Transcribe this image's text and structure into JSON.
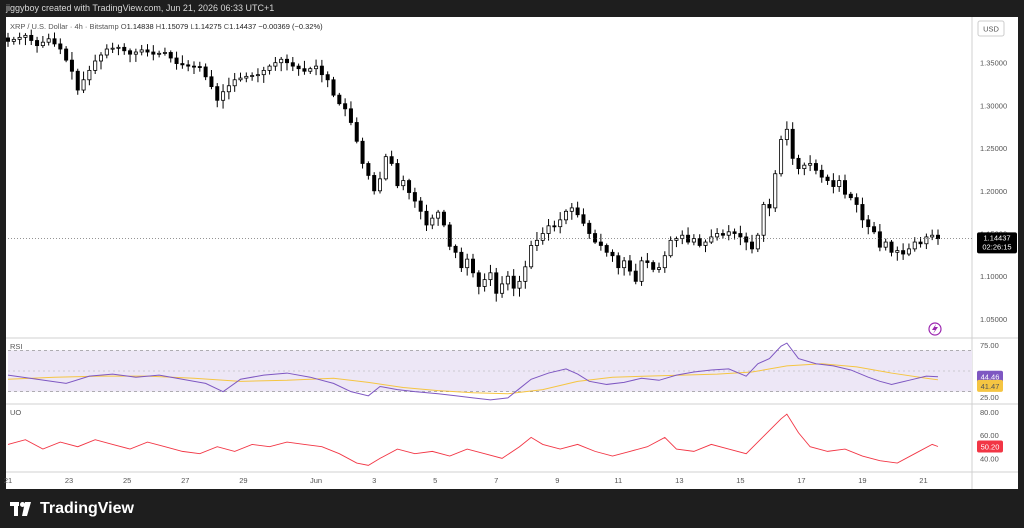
{
  "header": {
    "credit": "jiggyboy created with TradingView.com, Jun 21, 2026 06:33 UTC+1"
  },
  "brand": {
    "name": "TradingView"
  },
  "colors": {
    "up": "#ffffff",
    "down": "#000000",
    "wick": "#000000",
    "rsi_line": "#7e57c2",
    "rsi_ma": "#f5c542",
    "rsi_band": "#ede7f6",
    "uo_line": "#f23645",
    "price_pill": "#000000"
  },
  "chart_data": [
    {
      "type": "candlestick",
      "symbol_legend": "XRP / U.S. Dollar · 4h · Bitstamp",
      "ohlc_legend": {
        "o_label": "O",
        "o": "1.14838",
        "h_label": "H",
        "h": "1.15079",
        "l_label": "L",
        "l": "1.14275",
        "c_label": "C",
        "c": "1.14437",
        "change": "−0.00369 (−0.32%)"
      },
      "currency": "USD",
      "last_price": "1.14437",
      "countdown": "02:26:15",
      "y_ticks": [
        "1.35000",
        "1.30000",
        "1.25000",
        "1.20000",
        "1.15000",
        "1.10000",
        "1.05000"
      ],
      "y_tick_values": [
        1.35,
        1.3,
        1.25,
        1.2,
        1.15,
        1.1,
        1.05
      ],
      "ylim": [
        1.03,
        1.4
      ],
      "x_ticks": [
        "21",
        "23",
        "25",
        "27",
        "29",
        "Jun",
        "3",
        "5",
        "7",
        "9",
        "11",
        "13",
        "15",
        "17",
        "19",
        "21"
      ],
      "close_path": [
        [
          0,
          1.375
        ],
        [
          3,
          1.382
        ],
        [
          5,
          1.37
        ],
        [
          7,
          1.378
        ],
        [
          9,
          1.366
        ],
        [
          11,
          1.34
        ],
        [
          12,
          1.318
        ],
        [
          13,
          1.33
        ],
        [
          15,
          1.352
        ],
        [
          17,
          1.366
        ],
        [
          19,
          1.368
        ],
        [
          21,
          1.36
        ],
        [
          23,
          1.365
        ],
        [
          25,
          1.36
        ],
        [
          27,
          1.362
        ],
        [
          29,
          1.349
        ],
        [
          31,
          1.346
        ],
        [
          33,
          1.345
        ],
        [
          35,
          1.322
        ],
        [
          36,
          1.306
        ],
        [
          37,
          1.316
        ],
        [
          39,
          1.33
        ],
        [
          41,
          1.334
        ],
        [
          43,
          1.336
        ],
        [
          45,
          1.346
        ],
        [
          47,
          1.354
        ],
        [
          49,
          1.346
        ],
        [
          51,
          1.34
        ],
        [
          53,
          1.346
        ],
        [
          54,
          1.336
        ],
        [
          55,
          1.33
        ],
        [
          56,
          1.312
        ],
        [
          57,
          1.302
        ],
        [
          58,
          1.296
        ],
        [
          59,
          1.28
        ],
        [
          60,
          1.258
        ],
        [
          61,
          1.232
        ],
        [
          62,
          1.218
        ],
        [
          63,
          1.2
        ],
        [
          64,
          1.214
        ],
        [
          65,
          1.24
        ],
        [
          66,
          1.232
        ],
        [
          67,
          1.206
        ],
        [
          68,
          1.212
        ],
        [
          69,
          1.198
        ],
        [
          70,
          1.188
        ],
        [
          71,
          1.176
        ],
        [
          72,
          1.16
        ],
        [
          73,
          1.168
        ],
        [
          74,
          1.175
        ],
        [
          75,
          1.16
        ],
        [
          76,
          1.135
        ],
        [
          77,
          1.128
        ],
        [
          78,
          1.11
        ],
        [
          79,
          1.12
        ],
        [
          80,
          1.104
        ],
        [
          81,
          1.088
        ],
        [
          82,
          1.096
        ],
        [
          83,
          1.104
        ],
        [
          84,
          1.08
        ],
        [
          85,
          1.091
        ],
        [
          86,
          1.1
        ],
        [
          87,
          1.086
        ],
        [
          88,
          1.094
        ],
        [
          89,
          1.111
        ],
        [
          90,
          1.136
        ],
        [
          91,
          1.142
        ],
        [
          92,
          1.15
        ],
        [
          93,
          1.159
        ],
        [
          94,
          1.158
        ],
        [
          95,
          1.166
        ],
        [
          96,
          1.176
        ],
        [
          97,
          1.18
        ],
        [
          98,
          1.172
        ],
        [
          99,
          1.162
        ],
        [
          100,
          1.15
        ],
        [
          101,
          1.14
        ],
        [
          102,
          1.136
        ],
        [
          103,
          1.128
        ],
        [
          104,
          1.124
        ],
        [
          105,
          1.11
        ],
        [
          106,
          1.118
        ],
        [
          107,
          1.106
        ],
        [
          108,
          1.094
        ],
        [
          109,
          1.118
        ],
        [
          110,
          1.116
        ],
        [
          111,
          1.108
        ],
        [
          112,
          1.11
        ],
        [
          113,
          1.124
        ],
        [
          114,
          1.142
        ],
        [
          115,
          1.144
        ],
        [
          116,
          1.148
        ],
        [
          117,
          1.14
        ],
        [
          118,
          1.144
        ],
        [
          119,
          1.136
        ],
        [
          120,
          1.14
        ],
        [
          121,
          1.146
        ],
        [
          122,
          1.15
        ],
        [
          123,
          1.148
        ],
        [
          124,
          1.152
        ],
        [
          125,
          1.15
        ],
        [
          126,
          1.146
        ],
        [
          127,
          1.14
        ],
        [
          128,
          1.132
        ],
        [
          129,
          1.148
        ],
        [
          130,
          1.184
        ],
        [
          131,
          1.18
        ],
        [
          132,
          1.22
        ],
        [
          133,
          1.26
        ],
        [
          134,
          1.272
        ],
        [
          135,
          1.238
        ],
        [
          136,
          1.226
        ],
        [
          137,
          1.23
        ],
        [
          138,
          1.232
        ],
        [
          139,
          1.224
        ],
        [
          140,
          1.216
        ],
        [
          141,
          1.212
        ],
        [
          142,
          1.205
        ],
        [
          143,
          1.212
        ],
        [
          144,
          1.196
        ],
        [
          145,
          1.192
        ],
        [
          146,
          1.184
        ],
        [
          147,
          1.166
        ],
        [
          148,
          1.158
        ],
        [
          149,
          1.152
        ],
        [
          150,
          1.134
        ],
        [
          151,
          1.14
        ],
        [
          152,
          1.128
        ],
        [
          153,
          1.13
        ],
        [
          154,
          1.126
        ],
        [
          155,
          1.132
        ],
        [
          156,
          1.14
        ],
        [
          157,
          1.138
        ],
        [
          158,
          1.146
        ],
        [
          159,
          1.148
        ],
        [
          160,
          1.144
        ]
      ]
    },
    {
      "type": "line",
      "title": "RSI",
      "ylim": [
        20,
        80
      ],
      "y_ticks": [
        "75.00",
        "25.00"
      ],
      "y_tick_values": [
        75,
        25
      ],
      "band": [
        30,
        70
      ],
      "series": [
        {
          "name": "",
          "last_label": "44.46",
          "values": [
            [
              0,
              46
            ],
            [
              5,
              42
            ],
            [
              10,
              38
            ],
            [
              14,
              45
            ],
            [
              18,
              47
            ],
            [
              22,
              44
            ],
            [
              26,
              46
            ],
            [
              30,
              42
            ],
            [
              34,
              38
            ],
            [
              37,
              30
            ],
            [
              40,
              42
            ],
            [
              44,
              46
            ],
            [
              48,
              48
            ],
            [
              52,
              44
            ],
            [
              56,
              38
            ],
            [
              59,
              30
            ],
            [
              62,
              26
            ],
            [
              64,
              35
            ],
            [
              67,
              32
            ],
            [
              70,
              30
            ],
            [
              74,
              28
            ],
            [
              77,
              26
            ],
            [
              80,
              24
            ],
            [
              83,
              22
            ],
            [
              86,
              24
            ],
            [
              88,
              33
            ],
            [
              90,
              42
            ],
            [
              93,
              48
            ],
            [
              96,
              52
            ],
            [
              98,
              47
            ],
            [
              100,
              40
            ],
            [
              103,
              37
            ],
            [
              106,
              39
            ],
            [
              109,
              43
            ],
            [
              112,
              41
            ],
            [
              115,
              46
            ],
            [
              118,
              49
            ],
            [
              121,
              51
            ],
            [
              124,
              52
            ],
            [
              127,
              45
            ],
            [
              129,
              57
            ],
            [
              131,
              62
            ],
            [
              133,
              74
            ],
            [
              134,
              77
            ],
            [
              136,
              62
            ],
            [
              139,
              57
            ],
            [
              142,
              55
            ],
            [
              145,
              51
            ],
            [
              148,
              44
            ],
            [
              150,
              40
            ],
            [
              152,
              37
            ],
            [
              155,
              41
            ],
            [
              158,
              45
            ],
            [
              160,
              44.46
            ]
          ]
        },
        {
          "name": "",
          "last_label": "41.47",
          "values": [
            [
              0,
              42
            ],
            [
              8,
              44
            ],
            [
              16,
              45
            ],
            [
              24,
              45
            ],
            [
              32,
              43
            ],
            [
              40,
              40
            ],
            [
              48,
              41
            ],
            [
              56,
              43
            ],
            [
              62,
              39
            ],
            [
              68,
              34
            ],
            [
              74,
              31
            ],
            [
              80,
              29
            ],
            [
              86,
              28
            ],
            [
              92,
              32
            ],
            [
              98,
              40
            ],
            [
              104,
              44
            ],
            [
              110,
              45
            ],
            [
              116,
              46
            ],
            [
              122,
              47
            ],
            [
              128,
              49
            ],
            [
              134,
              55
            ],
            [
              140,
              57
            ],
            [
              146,
              54
            ],
            [
              152,
              48
            ],
            [
              158,
              43
            ],
            [
              160,
              41.47
            ]
          ]
        }
      ]
    },
    {
      "type": "line",
      "title": "UO",
      "ylim": [
        30,
        85
      ],
      "y_ticks": [
        "80.00",
        "60.00",
        "40.00"
      ],
      "y_tick_values": [
        80,
        60,
        40
      ],
      "series": [
        {
          "name": "",
          "last_label": "50.20",
          "values": [
            [
              0,
              52
            ],
            [
              3,
              56
            ],
            [
              6,
              48
            ],
            [
              9,
              54
            ],
            [
              12,
              50
            ],
            [
              15,
              56
            ],
            [
              18,
              52
            ],
            [
              21,
              48
            ],
            [
              24,
              54
            ],
            [
              27,
              50
            ],
            [
              30,
              46
            ],
            [
              33,
              44
            ],
            [
              36,
              50
            ],
            [
              39,
              46
            ],
            [
              42,
              52
            ],
            [
              45,
              50
            ],
            [
              48,
              54
            ],
            [
              51,
              52
            ],
            [
              54,
              50
            ],
            [
              57,
              44
            ],
            [
              60,
              36
            ],
            [
              62,
              34
            ],
            [
              64,
              40
            ],
            [
              67,
              48
            ],
            [
              70,
              44
            ],
            [
              73,
              46
            ],
            [
              76,
              42
            ],
            [
              79,
              48
            ],
            [
              82,
              44
            ],
            [
              85,
              40
            ],
            [
              88,
              50
            ],
            [
              90,
              58
            ],
            [
              92,
              52
            ],
            [
              95,
              48
            ],
            [
              98,
              52
            ],
            [
              101,
              46
            ],
            [
              104,
              42
            ],
            [
              107,
              46
            ],
            [
              110,
              50
            ],
            [
              113,
              58
            ],
            [
              115,
              48
            ],
            [
              118,
              46
            ],
            [
              121,
              52
            ],
            [
              124,
              48
            ],
            [
              127,
              44
            ],
            [
              129,
              54
            ],
            [
              131,
              64
            ],
            [
              133,
              74
            ],
            [
              134,
              78
            ],
            [
              136,
              62
            ],
            [
              138,
              50
            ],
            [
              141,
              46
            ],
            [
              144,
              48
            ],
            [
              147,
              42
            ],
            [
              150,
              38
            ],
            [
              153,
              36
            ],
            [
              156,
              44
            ],
            [
              159,
              52
            ],
            [
              160,
              50.2
            ]
          ]
        }
      ]
    }
  ]
}
